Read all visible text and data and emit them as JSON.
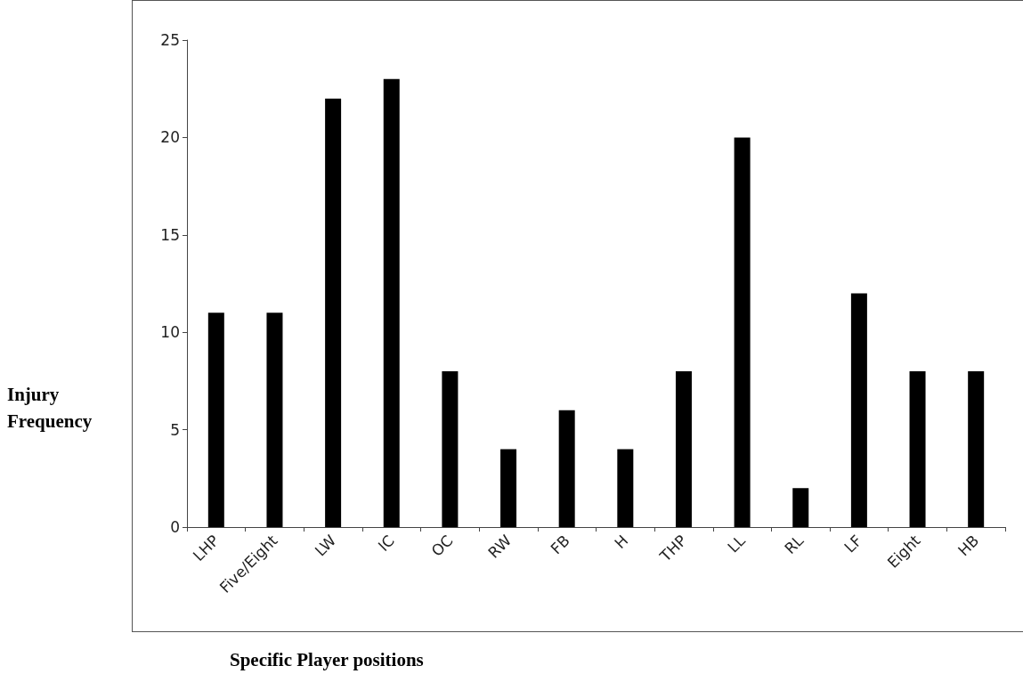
{
  "chart_data": {
    "type": "bar",
    "xlabel": "Specific Player positions",
    "ylabel": "Injury Frequency",
    "categories": [
      "LHP",
      "Five/Eight",
      "LW",
      "IC",
      "OC",
      "RW",
      "FB",
      "H",
      "THP",
      "LL",
      "RL",
      "LF",
      "Eight",
      "HB"
    ],
    "values": [
      11,
      11,
      22,
      23,
      8,
      4,
      6,
      4,
      8,
      20,
      2,
      12,
      8,
      8
    ],
    "color": "#000000",
    "ylim": [
      0,
      25
    ],
    "yticks": [
      0,
      5,
      10,
      15,
      20,
      25
    ]
  }
}
